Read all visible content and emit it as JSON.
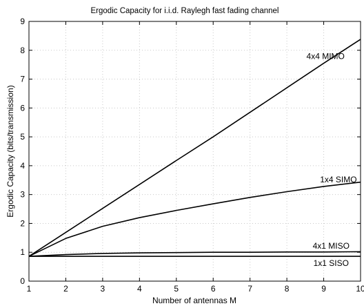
{
  "chart_data": {
    "type": "line",
    "title": "Ergodic Capacity for i.i.d. Raylegh fast fading channel",
    "xlabel": "Number of antennas M",
    "ylabel": "Ergodic Capacity (bits/transmission)",
    "xlim": [
      1,
      10
    ],
    "ylim": [
      0,
      9
    ],
    "x_ticks": [
      1,
      2,
      3,
      4,
      5,
      6,
      7,
      8,
      9,
      10
    ],
    "y_ticks": [
      0,
      1,
      2,
      3,
      4,
      5,
      6,
      7,
      8,
      9
    ],
    "grid": true,
    "x": [
      1,
      2,
      3,
      4,
      5,
      6,
      7,
      8,
      9,
      10
    ],
    "series": [
      {
        "name": "4x4 MIMO",
        "values": [
          0.86,
          1.69,
          2.52,
          3.35,
          4.18,
          5.0,
          5.85,
          6.7,
          7.55,
          8.38
        ]
      },
      {
        "name": "1x4 SIMO",
        "values": [
          0.86,
          1.48,
          1.9,
          2.2,
          2.45,
          2.68,
          2.9,
          3.1,
          3.28,
          3.43
        ]
      },
      {
        "name": "4x1 MISO",
        "values": [
          0.86,
          0.92,
          0.96,
          0.98,
          0.99,
          1.0,
          1.0,
          1.01,
          1.01,
          1.02
        ]
      },
      {
        "name": "1x1 SISO",
        "values": [
          0.86,
          0.86,
          0.86,
          0.86,
          0.86,
          0.86,
          0.86,
          0.86,
          0.86,
          0.86
        ]
      }
    ]
  }
}
